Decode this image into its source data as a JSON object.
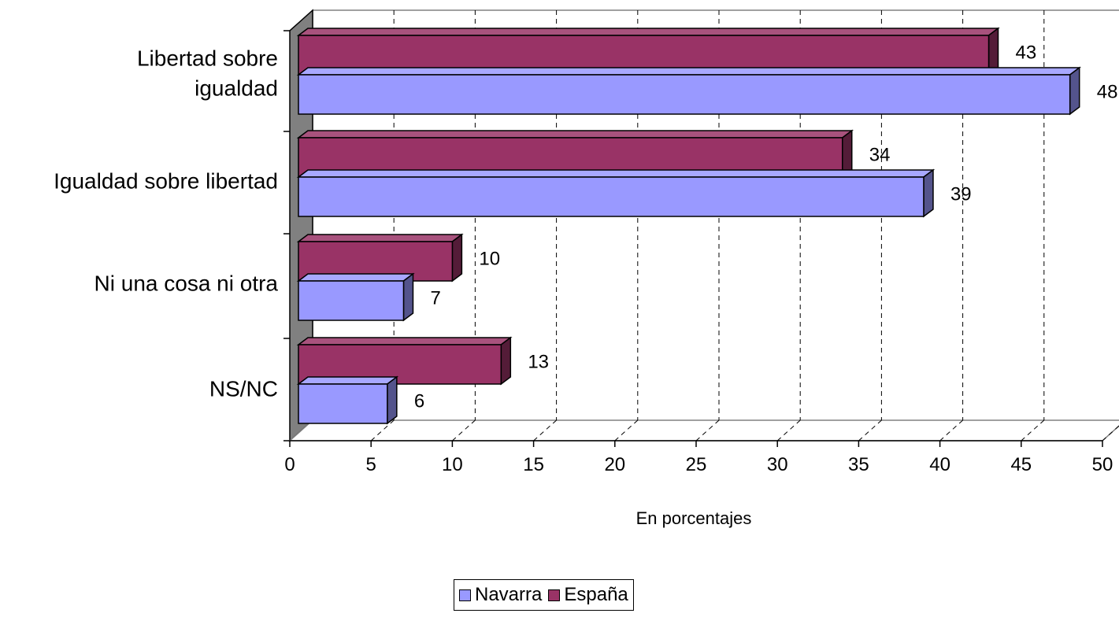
{
  "chart_data": {
    "type": "bar",
    "orientation": "horizontal",
    "style": "3d",
    "categories": [
      "Libertad sobre igualdad",
      "Igualdad sobre libertad",
      "Ni una cosa ni otra",
      "NS/NC"
    ],
    "category_lines": [
      [
        "Libertad sobre",
        "igualdad"
      ],
      [
        "Igualdad sobre libertad"
      ],
      [
        "Ni una cosa ni otra"
      ],
      [
        "NS/NC"
      ]
    ],
    "series": [
      {
        "name": "España",
        "values": [
          43,
          34,
          10,
          13
        ],
        "color": "#993366"
      },
      {
        "name": "Navarra",
        "values": [
          48,
          39,
          7,
          6
        ],
        "color": "#9999FF"
      }
    ],
    "data_labels": [
      [
        "43",
        "34",
        "10",
        "13"
      ],
      [
        "48",
        "39",
        "7",
        "6"
      ]
    ],
    "xlim": [
      0,
      50
    ],
    "xticks": [
      "0",
      "5",
      "10",
      "15",
      "20",
      "25",
      "30",
      "35",
      "40",
      "45",
      "50"
    ],
    "xlabel": "En porcentajes",
    "grid": "vertical dashed",
    "legend_position": "bottom",
    "legend": [
      {
        "name": "Navarra",
        "color": "#9999FF"
      },
      {
        "name": "España",
        "color": "#993366"
      }
    ],
    "side_wall_color": "#808080"
  }
}
